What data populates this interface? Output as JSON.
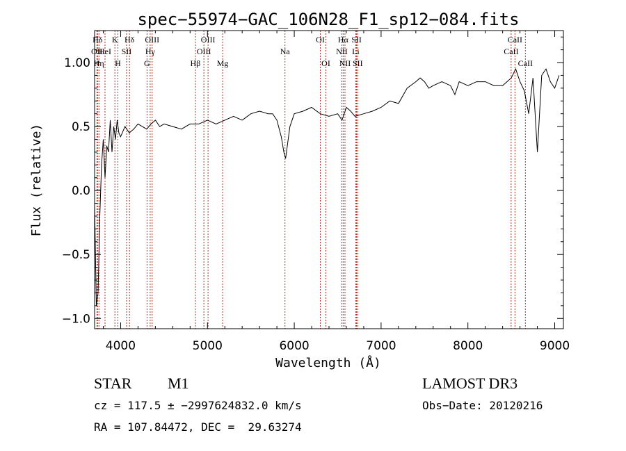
{
  "chart_data": {
    "type": "line",
    "title": "spec−55974−GAC_106N28_F1_sp12−084.fits",
    "xlabel": "Wavelength (Å)",
    "ylabel": "Flux (relative)",
    "xlim": [
      3700,
      9100
    ],
    "ylim": [
      -1.08,
      1.25
    ],
    "x_ticks": [
      4000,
      5000,
      6000,
      7000,
      8000,
      9000
    ],
    "x_tick_labels": [
      "4000",
      "5000",
      "6000",
      "7000",
      "8000",
      "9000"
    ],
    "y_ticks": [
      -1.0,
      -0.5,
      0.0,
      0.5,
      1.0
    ],
    "y_tick_labels": [
      "−1.0",
      "−0.5",
      "0.0",
      "0.5",
      "1.00"
    ],
    "grid": false,
    "series_color": "#000000",
    "line_color": "#b03020",
    "series": [
      {
        "x": [
          3700,
          3720,
          3740,
          3760,
          3780,
          3800,
          3820,
          3840,
          3860,
          3880,
          3900,
          3920,
          3940,
          3960,
          3980,
          4000,
          4050,
          4100,
          4150,
          4200,
          4250,
          4300,
          4350,
          4400,
          4450,
          4500,
          4600,
          4700,
          4800,
          4900,
          5000,
          5100,
          5200,
          5300,
          5400,
          5500,
          5600,
          5700,
          5750,
          5800,
          5850,
          5880,
          5900,
          5920,
          5950,
          6000,
          6100,
          6200,
          6300,
          6400,
          6500,
          6550,
          6600,
          6650,
          6700,
          6800,
          6900,
          7000,
          7100,
          7200,
          7300,
          7400,
          7450,
          7500,
          7550,
          7600,
          7700,
          7800,
          7850,
          7900,
          8000,
          8100,
          8200,
          8300,
          8400,
          8450,
          8500,
          8550,
          8600,
          8650,
          8700,
          8750,
          8800,
          8850,
          8900,
          8950,
          9000,
          9050
        ],
        "y": [
          -0.1,
          -0.9,
          -0.8,
          -0.2,
          0.2,
          0.4,
          0.1,
          0.35,
          0.3,
          0.55,
          0.3,
          0.5,
          0.4,
          0.55,
          0.45,
          0.42,
          0.5,
          0.45,
          0.48,
          0.52,
          0.5,
          0.48,
          0.52,
          0.55,
          0.5,
          0.52,
          0.5,
          0.48,
          0.52,
          0.52,
          0.55,
          0.52,
          0.55,
          0.58,
          0.55,
          0.6,
          0.62,
          0.6,
          0.6,
          0.55,
          0.42,
          0.3,
          0.25,
          0.35,
          0.5,
          0.6,
          0.62,
          0.65,
          0.6,
          0.58,
          0.6,
          0.55,
          0.65,
          0.62,
          0.58,
          0.6,
          0.62,
          0.65,
          0.7,
          0.68,
          0.8,
          0.85,
          0.88,
          0.85,
          0.8,
          0.82,
          0.85,
          0.82,
          0.75,
          0.85,
          0.82,
          0.85,
          0.85,
          0.82,
          0.82,
          0.85,
          0.88,
          0.95,
          0.85,
          0.78,
          0.6,
          0.88,
          0.3,
          0.9,
          0.95,
          0.85,
          0.8,
          0.9
        ]
      }
    ],
    "lines": [
      {
        "label": "Hδ",
        "x": 3734,
        "row": 0
      },
      {
        "label": "OII",
        "x": 3727,
        "row": 1
      },
      {
        "label": "Hη",
        "x": 3750,
        "row": 2
      },
      {
        "label": "HeI",
        "x": 3820,
        "row": 1
      },
      {
        "label": "K",
        "x": 3934,
        "row": 0
      },
      {
        "label": "SII",
        "x": 4068,
        "row": 1
      },
      {
        "label": "H",
        "x": 3968,
        "row": 2
      },
      {
        "label": "Hδ",
        "x": 4102,
        "row": 0
      },
      {
        "label": "OIII",
        "x": 4363,
        "row": 0
      },
      {
        "label": "Hγ",
        "x": 4340,
        "row": 1
      },
      {
        "label": "G",
        "x": 4304,
        "row": 2
      },
      {
        "label": "Hβ",
        "x": 4861,
        "row": 2
      },
      {
        "label": "OIII",
        "x": 5007,
        "row": 0
      },
      {
        "label": "OIII",
        "x": 4959,
        "row": 1
      },
      {
        "label": "Mg",
        "x": 5175,
        "row": 2
      },
      {
        "label": "Na",
        "x": 5893,
        "row": 1
      },
      {
        "label": "OI",
        "x": 6300,
        "row": 0
      },
      {
        "label": "OI",
        "x": 6364,
        "row": 2
      },
      {
        "label": "Hα",
        "x": 6563,
        "row": 0
      },
      {
        "label": "SII",
        "x": 6717,
        "row": 0
      },
      {
        "label": "NII",
        "x": 6548,
        "row": 1
      },
      {
        "label": "Li",
        "x": 6708,
        "row": 1
      },
      {
        "label": "NII",
        "x": 6584,
        "row": 2
      },
      {
        "label": "SII",
        "x": 6731,
        "row": 2
      },
      {
        "label": "CaII",
        "x": 8542,
        "row": 0
      },
      {
        "label": "CaII",
        "x": 8498,
        "row": 1
      },
      {
        "label": "CaII",
        "x": 8662,
        "row": 2
      }
    ]
  },
  "info": {
    "object_class": "STAR",
    "subclass": "M1",
    "survey": "LAMOST DR3",
    "cz_line": "cz = 117.5 ± −2997624832.0 km/s",
    "obs_date": "Obs−Date: 20120216",
    "coords_line": "RA = 107.84472, DEC =  29.63274"
  }
}
